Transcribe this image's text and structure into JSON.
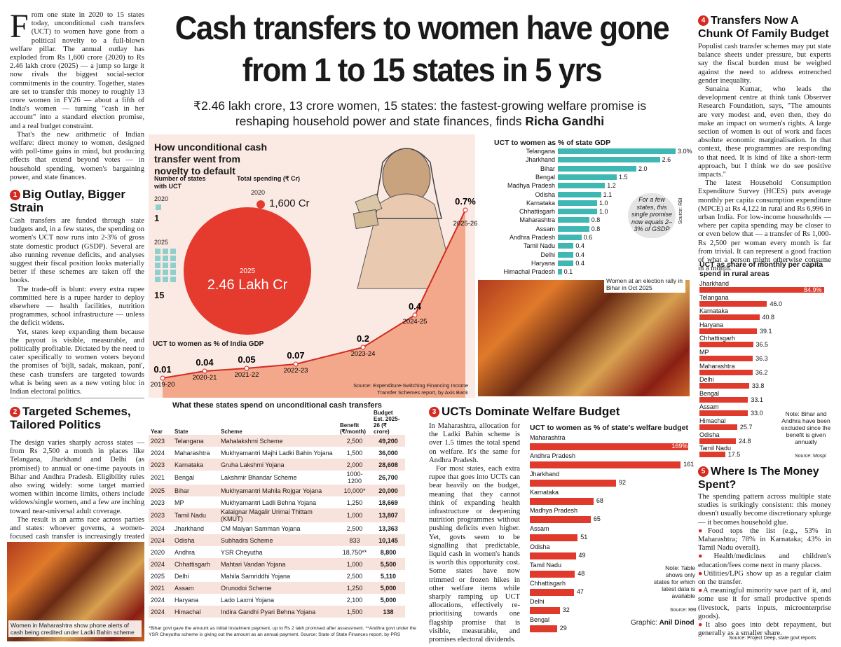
{
  "headline": "Cash transfers to women have gone from 1 to 15 states in 5 yrs",
  "subhead": "₹2.46 lakh crore, 13 crore women, 15 states: the fastest-growing welfare promise is reshaping household power and state finances, finds",
  "byline": "Richa Gandhi",
  "intro": {
    "dropcap": "F",
    "first": "rom one state in 2020 to 15 states today, unconditional cash transfers (UCT) to women have gone from a political novelty to a full-blown welfare pillar. The annual outlay has exploded from Rs 1,600 crore (2020) to Rs 2.46 lakh crore (2025) — a jump so large it now rivals the biggest social-sector commitments in the country. Together, states are set to transfer this money to roughly 13 crore women in FY26 — about a fifth of India's women — turning \"cash in her account\" into a standard election promise, and a real budget constraint.",
    "second": "That's the new arithmetic of Indian welfare: direct money to women, designed with poll-time gains in mind, but producing effects that extend beyond votes — in household spending, women's bargaining power, and state finances."
  },
  "section1": {
    "num": "1",
    "title": "Big Outlay, Bigger Strain",
    "p1": "Cash transfers are funded through state budgets and, in a few states, the spending on women's UCT now runs into 2-3% of gross state domestic product (GSDP). Several are also running revenue deficits, and analyses suggest their fiscal position looks materially better if these schemes are taken off the books.",
    "p2": "The trade-off is blunt: every extra rupee committed here is a rupee harder to deploy elsewhere — health facilities, nutrition programmes, school infrastructure — unless the deficit widens.",
    "p3": "Yet, states keep expanding them because the payout is visible, measurable, and politically profitable. Dictated by the need to cater specifically to women voters beyond the promises of 'bijli, sadak, makaan, pani', these cash transfers are targeted towards what is being seen as a new voting bloc in Indian electoral politics."
  },
  "section2": {
    "num": "2",
    "title": "Targeted Schemes, Tailored Politics",
    "p1": "The design varies sharply across states — from Rs 2,500 a month in places like Telangana, Jharkhand and Delhi (as promised) to annual or one-time payouts in Bihar and Andhra Pradesh. Eligibility rules also swing widely: some target married women within income limits, others include widows/single women, and a few are inching toward near-universal adult coverage.",
    "p2": "The result is an arms race across parties and states: whoever governs, a women-focused cash transfer is increasingly treated as baseline.",
    "caption": "Women in Maharashtra show phone alerts of cash being credited under Ladki Bahin scheme"
  },
  "section3": {
    "num": "3",
    "title": "UCTs Dominate Welfare Budget",
    "p1": "In Maharashtra, allocation for the Ladki Bahin scheme is over 1.5 times the total spend on welfare. It's the same for Andhra Pradesh.",
    "p2": "For most states, each extra rupee that goes into UCTs can bear heavily on the budget, meaning that they cannot think of expanding health infrastructure or deepening nutrition programmes without pushing deficits even higher. Yet, govts seem to be signalling that predictable, liquid cash in women's hands is worth this opportunity cost. Some states have now trimmed or frozen hikes in other welfare items while sharply ramping up UCT allocations, effectively re-prioritising towards one flagship promise that is visible, measurable, and promises electoral dividends."
  },
  "section4": {
    "num": "4",
    "title": "Transfers Now A Chunk Of Family Budget",
    "p1": "Populist cash transfer schemes may put state balance sheets under pressure, but experts say the fiscal burden must be weighed against the need to address entrenched gender inequality.",
    "p2": "Sunaina Kumar, who leads the development centre at think tank Observer Research Foundation, says, \"The amounts are very modest and, even then, they do make an impact on women's rights. A large section of women is out of work and faces absolute economic marginalisation. In that context, these programmes are responding to that need. It is kind of like a short-term approach, but I think we do see positive impacts.\"",
    "p3": "The latest Household Consumption Expenditure Survey (HCES) puts average monthly per capita consumption expenditure (MPCE) at Rs 4,122 in rural and Rs 6,996 in urban India. For low-income households — where per capita spending may be closer to or even below that — a transfer of Rs 1,000-Rs 2,500 per woman every month is far from trivial. It can represent a good fraction of what a person might otherwise consume in a month."
  },
  "section5": {
    "num": "5",
    "title": "Where Is The Money Spent?",
    "p1": "The spending pattern across multiple state studies is strikingly consistent: this money doesn't usually become discretionary splurge — it becomes household glue.",
    "bullets": [
      "Food tops the list (e.g., 53% in Maharashtra; 78% in Karnataka; 43% in Tamil Nadu overall).",
      "Health/medicines and children's education/fees come next in many places.",
      "Utilities/LPG show up as a regular claim on the transfer.",
      "A meaningful minority save part of it, and some use it for small productive spends (livestock, parts inputs, microenterprise goods).",
      "It also goes into debt repayment, but generally as a smaller share."
    ],
    "source": "Source: Project Deep, state govt reports"
  },
  "novelty": {
    "title": "How unconditional cash transfer went from novelty to default",
    "states_label": "Number of states with UCT",
    "spend_label": "Total spending (₹ Cr)",
    "year_a": "2020",
    "val_a_states": "1",
    "val_a_spend": "1,600 Cr",
    "year_b": "2025",
    "val_b_states": "15",
    "val_b_spend": "2.46 Lakh Cr",
    "gdp_title": "UCT to women as % of India GDP",
    "source": "Source: Expenditure-Switching Financing Income Transfer Schemes report, by Axis Bank",
    "chart_data": {
      "type": "area",
      "x": [
        "2019-20",
        "2020-21",
        "2021-22",
        "2022-23",
        "2023-24",
        "2024-25",
        "2025-26"
      ],
      "values": [
        0.01,
        0.04,
        0.05,
        0.07,
        0.2,
        0.4,
        0.7
      ],
      "labels": [
        "0.01",
        "0.04",
        "0.05",
        "0.07",
        "0.2",
        "0.4",
        "0.7%"
      ],
      "title": "UCT to women as % of India GDP"
    }
  },
  "gsdp": {
    "title": "UCT to women as % of state GDP",
    "note": "For a few states, this single promise now equals 2–3% of GSDP",
    "source": "Source: RBI",
    "photo_caption": "Women at an election rally in Bihar in Oct 2025",
    "chart_data": {
      "type": "bar",
      "categories": [
        "Telangana",
        "Jharkhand",
        "Bihar",
        "Bengal",
        "Madhya Pradesh",
        "Odisha",
        "Karnataka",
        "Chhattisgarh",
        "Maharashtra",
        "Assam",
        "Andhra Pradesh",
        "Tamil Nadu",
        "Delhi",
        "Haryana",
        "Himachal Pradesh"
      ],
      "values": [
        3.0,
        2.6,
        2.0,
        1.5,
        1.2,
        1.1,
        1.0,
        1.0,
        0.8,
        0.8,
        0.6,
        0.4,
        0.4,
        0.4,
        0.1
      ],
      "labels": [
        "3.0%",
        "2.6",
        "2.0",
        "1.5",
        "1.2",
        "1.1",
        "1.0",
        "1.0",
        "0.8",
        "0.8",
        "0.6",
        "0.4",
        "0.4",
        "0.4",
        "0.1"
      ],
      "title": "UCT to women as % of state GDP"
    }
  },
  "table": {
    "title": "What these states spend on unconditional cash transfers",
    "headers": [
      "Year",
      "State",
      "Scheme",
      "Benefit (₹/month)",
      "Budget Est. 2025-26 (₹ crore)"
    ],
    "rows": [
      [
        "2023",
        "Telangana",
        "Mahalakshmi Scheme",
        "2,500",
        "49,200"
      ],
      [
        "2024",
        "Maharashtra",
        "Mukhyamantri Majhi Ladki Bahin Yojana",
        "1,500",
        "36,000"
      ],
      [
        "2023",
        "Karnataka",
        "Gruha Lakshmi Yojana",
        "2,000",
        "28,608"
      ],
      [
        "2021",
        "Bengal",
        "Lakshmir Bhandar Scheme",
        "1000-1200",
        "26,700"
      ],
      [
        "2025",
        "Bihar",
        "Mukhyamantri Mahila Rojgar Yojana",
        "10,000*",
        "20,000"
      ],
      [
        "2023",
        "MP",
        "Mukhyamantri Ladli Behna Yojana",
        "1,250",
        "18,669"
      ],
      [
        "2023",
        "Tamil Nadu",
        "Kalaignar Magalir Urimai Thittam (KMUT)",
        "1,000",
        "13,807"
      ],
      [
        "2024",
        "Jharkhand",
        "CM Maiyan Samman Yojana",
        "2,500",
        "13,363"
      ],
      [
        "2024",
        "Odisha",
        "Subhadra Scheme",
        "833",
        "10,145"
      ],
      [
        "2020",
        "Andhra",
        "YSR Cheyutha",
        "18,750**",
        "8,800"
      ],
      [
        "2024",
        "Chhattisgarh",
        "Mahtari Vandan Yojana",
        "1,000",
        "5,500"
      ],
      [
        "2025",
        "Delhi",
        "Mahila Samriddhi Yojana",
        "2,500",
        "5,110"
      ],
      [
        "2021",
        "Assam",
        "Orunodoi Scheme",
        "1,250",
        "5,000"
      ],
      [
        "2024",
        "Haryana",
        "Lado Laxmi Yojana",
        "2,100",
        "5,000"
      ],
      [
        "2024",
        "Himachal",
        "Indira Gandhi Pyari Behna Yojana",
        "1,500",
        "138"
      ]
    ],
    "footnote": "*Bihar govt gave the amount as initial instalment payment, up to Rs 2 lakh promised after assessment. **Andhra govt under the YSR Cheyutha scheme is giving out the amount as an annual payment. Source: State of State Finances report, by PRS"
  },
  "welfare": {
    "title": "UCT to women as % of state's welfare budget",
    "note": "Note: Table shows only states for which latest data is available",
    "source": "Source: RBI",
    "credit": "Graphic:",
    "credit_name": "Anil Dinod",
    "chart_data": {
      "type": "bar",
      "categories": [
        "Maharashtra",
        "Andhra Pradesh",
        "Jharkhand",
        "Karnataka",
        "Madhya Pradesh",
        "Assam",
        "Odisha",
        "Tamil Nadu",
        "Chhattisgarh",
        "Delhi",
        "Bengal"
      ],
      "values": [
        169,
        161,
        92,
        68,
        65,
        51,
        49,
        48,
        47,
        32,
        29
      ],
      "labels": [
        "169%",
        "161",
        "92",
        "68",
        "65",
        "51",
        "49",
        "48",
        "47",
        "32",
        "29"
      ],
      "title": "UCT to women as % of state's welfare budget"
    }
  },
  "mpce": {
    "title": "UCT as share of monthly per capita spend in rural areas",
    "note": "Note: Bihar and Andhra have been excluded since the benefit is given annually",
    "source": "Source: Mospi",
    "chart_data": {
      "type": "bar",
      "categories": [
        "Jharkhand",
        "Telangana",
        "Karnataka",
        "Haryana",
        "Chhattisgarh",
        "MP",
        "Maharashtra",
        "Delhi",
        "Bengal",
        "Assam",
        "Himachal",
        "Odisha",
        "Tamil Nadu"
      ],
      "values": [
        84.9,
        46.0,
        40.8,
        39.1,
        36.5,
        36.3,
        36.2,
        33.8,
        33.1,
        33.0,
        25.7,
        24.8,
        17.5
      ],
      "labels": [
        "84.9%",
        "46.0",
        "40.8",
        "39.1",
        "36.5",
        "36.3",
        "36.2",
        "33.8",
        "33.1",
        "33.0",
        "25.7",
        "24.8",
        "17.5"
      ],
      "title": "UCT as share of monthly per capita spend in rural areas"
    }
  }
}
